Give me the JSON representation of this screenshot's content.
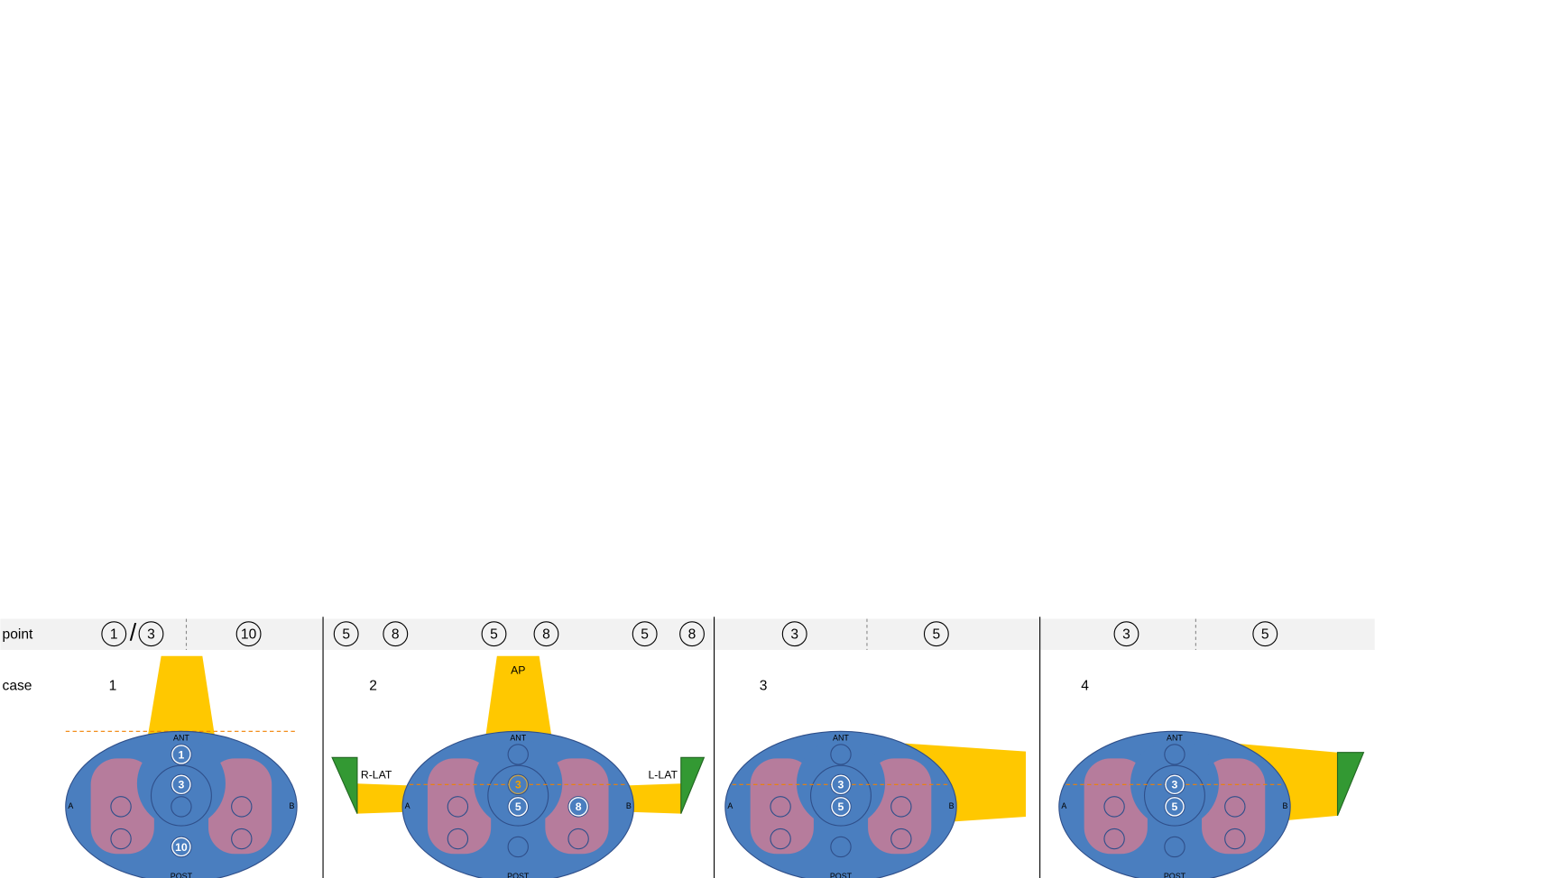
{
  "row_labels": {
    "point": "point",
    "case": "case"
  },
  "panels": [
    {
      "case": "1",
      "points": [
        "1",
        "3",
        "10"
      ],
      "separator": "/",
      "body": {
        "ant": "ANT",
        "post": "POST",
        "a": "A",
        "b": "B"
      },
      "markers": [
        "1",
        "3",
        "10"
      ]
    },
    {
      "case": "2",
      "points": [
        "5",
        "8",
        "5",
        "8",
        "5",
        "8"
      ],
      "beam_labels": [
        "AP",
        "R-LAT",
        "L-LAT"
      ],
      "body": {
        "ant": "ANT",
        "post": "POST",
        "a": "A",
        "b": "B"
      },
      "markers": [
        "3",
        "5",
        "8"
      ]
    },
    {
      "case": "3",
      "points": [
        "3",
        "5"
      ],
      "body": {
        "ant": "ANT",
        "post": "POST",
        "a": "A",
        "b": "B"
      },
      "markers": [
        "3",
        "5"
      ]
    },
    {
      "case": "4",
      "points": [
        "3",
        "5"
      ],
      "body": {
        "ant": "ANT",
        "post": "POST",
        "a": "A",
        "b": "B"
      },
      "markers": [
        "3",
        "5"
      ]
    }
  ]
}
